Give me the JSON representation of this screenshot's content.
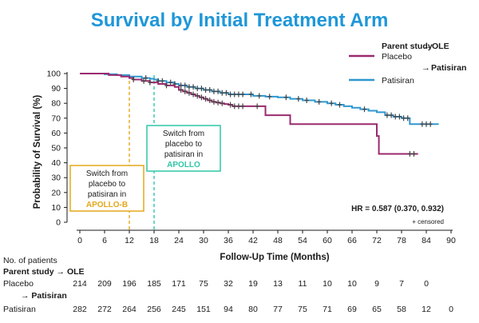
{
  "title": "Survival by Initial Treatment Arm",
  "legend": {
    "header_parent": "Parent study",
    "header_ole": "OLE",
    "placebo_label": "Placebo",
    "patisiran_ole": "Patisiran",
    "patisiran_label": "Patisiran"
  },
  "annotations": {
    "switch_apollo_lines": [
      "Switch from",
      "placebo to",
      "patisiran in"
    ],
    "switch_apollo_name": "APOLLO",
    "switch_apollob_lines": [
      "Switch from",
      "placebo to",
      "patisiran in"
    ],
    "switch_apollob_name": "APOLLO-B",
    "hr_text": "HR = 0.587 (0.370, 0.932)",
    "censored_text": "+ censored"
  },
  "risk_table": {
    "title": "No. of patients",
    "parent_study": "Parent study",
    "ole": "OLE",
    "placebo_label": "Placebo",
    "patisiran_ole": "Patisiran",
    "patisiran_label": "Patisiran",
    "placebo_counts": [
      "214",
      "209",
      "196",
      "185",
      "171",
      "75",
      "32",
      "19",
      "13",
      "11",
      "10",
      "10",
      "9",
      "7",
      "0"
    ],
    "patisiran_counts": [
      "282",
      "272",
      "264",
      "256",
      "245",
      "151",
      "94",
      "80",
      "77",
      "75",
      "71",
      "69",
      "65",
      "58",
      "12",
      "0"
    ]
  },
  "colors": {
    "title": "#1f97d8",
    "placebo": "#9b2a6e",
    "patisiran": "#2f98cf",
    "switch_apollo": "#2fc7a7",
    "switch_apollob": "#e3a81b"
  },
  "chart_data": {
    "type": "line",
    "title": "Survival by Initial Treatment Arm",
    "xlabel": "Follow-Up Time (Months)",
    "ylabel": "Probability of Survival (%)",
    "xlim": [
      0,
      90
    ],
    "ylim": [
      0,
      100
    ],
    "xticks": [
      "0",
      "6",
      "12",
      "18",
      "24",
      "30",
      "36",
      "42",
      "48",
      "54",
      "60",
      "66",
      "72",
      "78",
      "84",
      "90"
    ],
    "yticks": [
      "0",
      "10",
      "20",
      "30",
      "40",
      "50",
      "60",
      "70",
      "80",
      "90",
      "100"
    ],
    "grid": false,
    "vlines": [
      {
        "name": "Switch APOLLO-B",
        "x": 12
      },
      {
        "name": "Switch APOLLO",
        "x": 18
      }
    ],
    "series": [
      {
        "name": "Placebo",
        "step": true,
        "x": [
          0,
          7,
          10,
          12,
          13,
          15,
          17,
          19,
          21,
          23,
          24,
          25,
          26,
          27,
          28,
          29,
          30,
          31,
          32,
          33,
          34,
          35,
          36,
          37,
          40,
          45,
          49,
          51,
          71,
          72,
          72.5,
          82
        ],
        "y": [
          100,
          99,
          98,
          97,
          96,
          95,
          94,
          93,
          92,
          91,
          89,
          88,
          87,
          86,
          85,
          84,
          83,
          82,
          81,
          80.5,
          80,
          79.5,
          79,
          78,
          78,
          72,
          72,
          66,
          66,
          58,
          46,
          46
        ],
        "censor_x": [
          13,
          15.5,
          17,
          21,
          24.5,
          25.5,
          26.5,
          27.5,
          28.5,
          29.5,
          30.5,
          31.5,
          32.5,
          33.5,
          34.5,
          36.5,
          37.5,
          38.5,
          39.5,
          43,
          80,
          81
        ]
      },
      {
        "name": "Patisiran",
        "step": true,
        "x": [
          0,
          6,
          9,
          12,
          15,
          17,
          18,
          19,
          21,
          23,
          24,
          26,
          28,
          30,
          32,
          34,
          36,
          39,
          42,
          45,
          48,
          51,
          54,
          57,
          60,
          62,
          64,
          66,
          68,
          70,
          72,
          74,
          76,
          78,
          80,
          82,
          87
        ],
        "y": [
          100,
          99.5,
          99,
          98,
          97,
          96.5,
          96,
          95,
          94,
          93,
          92,
          91,
          90,
          89,
          88,
          87,
          86,
          86,
          85,
          84.5,
          84,
          83,
          82,
          81,
          80,
          79,
          78,
          77,
          76,
          75,
          74,
          72,
          71,
          70,
          66,
          66,
          66
        ],
        "censor_x": [
          16,
          19,
          20,
          22,
          23,
          24.5,
          25.5,
          26.5,
          27.5,
          28.5,
          29.5,
          30.5,
          31.5,
          32.5,
          33.5,
          34.5,
          35.5,
          36.5,
          37.5,
          38.5,
          39.5,
          41.5,
          43.5,
          46,
          50,
          53,
          55,
          58,
          61,
          63,
          69,
          74.5,
          75.5,
          76.5,
          77.5,
          78.5,
          79.5,
          83,
          84,
          85
        ]
      }
    ]
  }
}
